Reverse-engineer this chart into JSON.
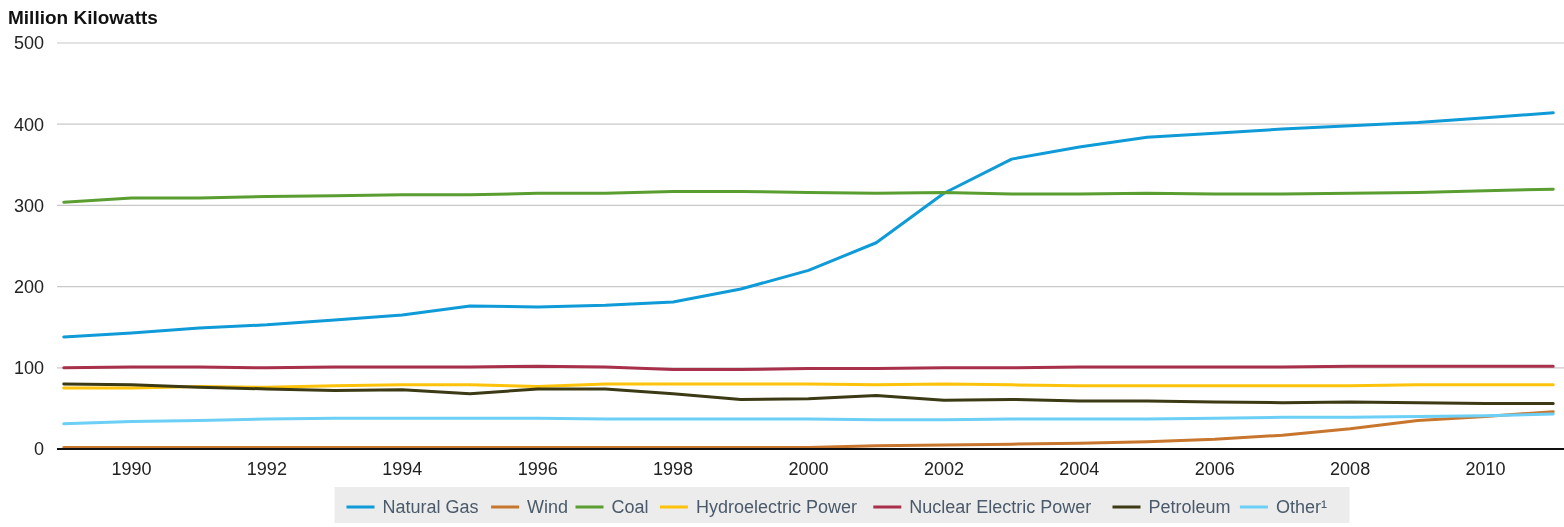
{
  "chart_data": {
    "type": "line",
    "ylabel": "Million Kilowatts",
    "x": [
      1989,
      1990,
      1991,
      1992,
      1993,
      1994,
      1995,
      1996,
      1997,
      1998,
      1999,
      2000,
      2001,
      2002,
      2003,
      2004,
      2005,
      2006,
      2007,
      2008,
      2009,
      2010,
      2011
    ],
    "xlim": [
      1988.9,
      2011.1
    ],
    "xticks": [
      1990,
      1992,
      1994,
      1996,
      1998,
      2000,
      2002,
      2004,
      2006,
      2008,
      2010
    ],
    "ylim": [
      0,
      500
    ],
    "yticks": [
      0,
      100,
      200,
      300,
      400,
      500
    ],
    "grid": "y",
    "legend": "bottom",
    "marker": "none",
    "line_style": "solid",
    "series": [
      {
        "name": "Natural Gas",
        "color": "#0f9ad8",
        "values": [
          138,
          143,
          149,
          153,
          159,
          165,
          176,
          175,
          177,
          181,
          197,
          220,
          254,
          315,
          357,
          372,
          384,
          389,
          394,
          398,
          402,
          408,
          414
        ]
      },
      {
        "name": "Wind",
        "color": "#c8762e",
        "values": [
          2,
          2,
          2,
          2,
          2,
          2,
          2,
          2,
          2,
          2,
          2,
          2,
          4,
          5,
          6,
          7,
          9,
          12,
          17,
          25,
          35,
          40,
          46
        ]
      },
      {
        "name": "Coal",
        "color": "#5a9e32",
        "values": [
          304,
          309,
          309,
          311,
          312,
          313,
          313,
          315,
          315,
          317,
          317,
          316,
          315,
          316,
          314,
          314,
          315,
          314,
          314,
          315,
          316,
          318,
          320
        ]
      },
      {
        "name": "Hydroelectric Power",
        "color": "#fdc30a",
        "values": [
          75,
          75,
          77,
          76,
          78,
          79,
          79,
          77,
          80,
          80,
          80,
          80,
          79,
          80,
          79,
          78,
          78,
          78,
          78,
          78,
          79,
          79,
          79
        ]
      },
      {
        "name": "Nuclear Electric Power",
        "color": "#a8304a",
        "values": [
          100,
          101,
          101,
          100,
          101,
          101,
          101,
          102,
          101,
          98,
          98,
          99,
          99,
          100,
          100,
          101,
          101,
          101,
          101,
          102,
          102,
          102,
          102
        ]
      },
      {
        "name": "Petroleum",
        "color": "#3b3a14",
        "values": [
          80,
          79,
          76,
          74,
          72,
          73,
          68,
          74,
          74,
          68,
          61,
          62,
          66,
          60,
          61,
          59,
          59,
          58,
          57,
          58,
          57,
          56,
          56
        ]
      },
      {
        "name": "Other¹",
        "color": "#6ccff6",
        "values": [
          31,
          34,
          35,
          37,
          38,
          38,
          38,
          38,
          37,
          37,
          37,
          37,
          36,
          36,
          37,
          37,
          37,
          38,
          39,
          39,
          40,
          41,
          43
        ]
      }
    ]
  }
}
